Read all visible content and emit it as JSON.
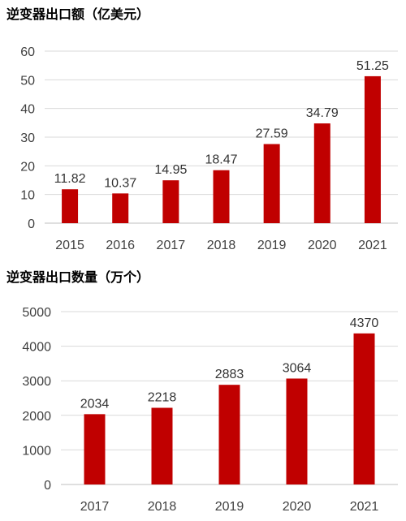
{
  "chart_data": [
    {
      "type": "bar",
      "title": "逆变器出口额（亿美元）",
      "xlabel": "",
      "ylabel": "",
      "categories": [
        "2015",
        "2016",
        "2017",
        "2018",
        "2019",
        "2020",
        "2021"
      ],
      "values": [
        11.82,
        10.37,
        14.95,
        18.47,
        27.59,
        34.79,
        51.25
      ],
      "value_labels": [
        "11.82",
        "10.37",
        "14.95",
        "18.47",
        "27.59",
        "34.79",
        "51.25"
      ],
      "ylim": [
        0,
        60
      ],
      "yticks": [
        0,
        10,
        20,
        30,
        40,
        50,
        60
      ],
      "grid": true,
      "legend": "none",
      "bar_color": "#c00000"
    },
    {
      "type": "bar",
      "title": "逆变器出口数量（万个）",
      "xlabel": "",
      "ylabel": "",
      "categories": [
        "2017",
        "2018",
        "2019",
        "2020",
        "2021"
      ],
      "values": [
        2034,
        2218,
        2883,
        3064,
        4370
      ],
      "value_labels": [
        "2034",
        "2218",
        "2883",
        "3064",
        "4370"
      ],
      "ylim": [
        0,
        5000
      ],
      "yticks": [
        0,
        1000,
        2000,
        3000,
        4000,
        5000
      ],
      "grid": true,
      "legend": "none",
      "bar_color": "#c00000"
    }
  ]
}
